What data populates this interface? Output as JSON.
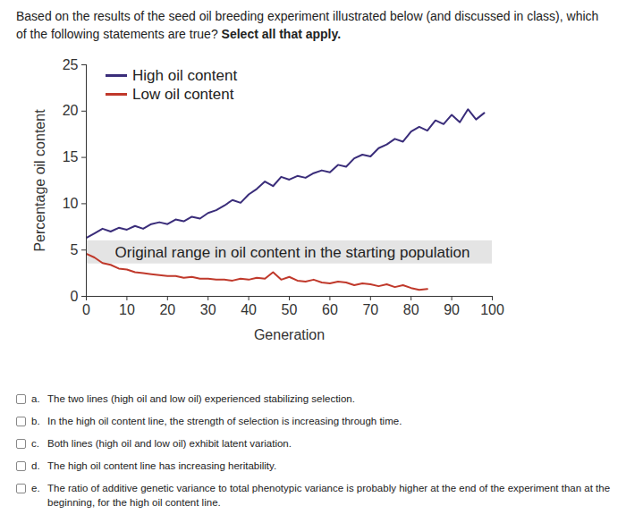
{
  "question": "Based on the results of the seed oil breeding experiment illustrated below (and discussed in class), which of the following statements are true?",
  "instruction": "Select all that apply.",
  "chart_data": {
    "type": "line",
    "x_label": "Generation",
    "y_label": "Percentage oil content",
    "x": [
      0,
      2,
      4,
      6,
      8,
      10,
      12,
      14,
      16,
      18,
      20,
      22,
      24,
      26,
      28,
      30,
      32,
      34,
      36,
      38,
      40,
      42,
      44,
      46,
      48,
      50,
      52,
      54,
      56,
      58,
      60,
      62,
      64,
      66,
      68,
      70,
      72,
      74,
      76,
      78,
      80,
      82,
      84,
      86,
      88,
      90,
      92,
      94,
      96,
      98
    ],
    "series": [
      {
        "name": "High oil content",
        "color": "#3a2d7a",
        "values": [
          6.3,
          6.8,
          7.3,
          7.0,
          7.4,
          7.2,
          7.6,
          7.3,
          7.8,
          8.0,
          7.8,
          8.3,
          8.1,
          8.6,
          8.4,
          9.0,
          9.3,
          9.8,
          10.4,
          10.1,
          11.0,
          11.6,
          12.4,
          11.9,
          12.9,
          12.6,
          13.0,
          12.8,
          13.3,
          13.6,
          13.4,
          14.2,
          14.0,
          14.9,
          15.3,
          15.1,
          16.0,
          16.4,
          17.0,
          16.7,
          17.8,
          18.3,
          17.9,
          19.0,
          18.6,
          19.6,
          18.8,
          20.2,
          19.1,
          19.8
        ]
      },
      {
        "name": "Low oil content",
        "color": "#c0392b",
        "values": [
          4.6,
          4.2,
          3.6,
          3.4,
          3.0,
          2.9,
          2.6,
          2.5,
          2.4,
          2.3,
          2.2,
          2.2,
          2.0,
          2.1,
          1.9,
          1.9,
          1.8,
          1.8,
          1.7,
          1.9,
          1.8,
          2.0,
          1.9,
          2.6,
          1.8,
          2.1,
          1.7,
          1.6,
          1.8,
          1.5,
          1.4,
          1.6,
          1.5,
          1.2,
          1.4,
          1.3,
          1.1,
          1.3,
          1.0,
          1.2,
          0.9,
          0.7,
          0.8,
          null,
          null,
          null,
          null,
          null,
          null,
          null
        ]
      }
    ],
    "xlim": [
      0,
      100
    ],
    "ylim": [
      0,
      25
    ],
    "xticks": [
      0,
      10,
      20,
      30,
      40,
      50,
      60,
      70,
      80,
      90,
      100
    ],
    "yticks": [
      0,
      5,
      10,
      15,
      20,
      25
    ],
    "legend": "top-left",
    "annotations": [
      {
        "text": "Original range in oil content in the starting population",
        "y_range": [
          3.5,
          6.0
        ]
      }
    ]
  },
  "options": [
    {
      "letter": "a.",
      "text": "The two lines (high oil and low oil) experienced stabilizing selection."
    },
    {
      "letter": "b.",
      "text": "In the high oil content line, the strength of selection is increasing through time."
    },
    {
      "letter": "c.",
      "text": "Both lines (high oil and low oil) exhibit latent variation."
    },
    {
      "letter": "d.",
      "text": "The high oil content line has increasing heritability."
    },
    {
      "letter": "e.",
      "text": "The ratio of additive genetic variance to total phenotypic variance is probably higher at the end of the experiment than at the beginning, for the high oil content line."
    }
  ]
}
